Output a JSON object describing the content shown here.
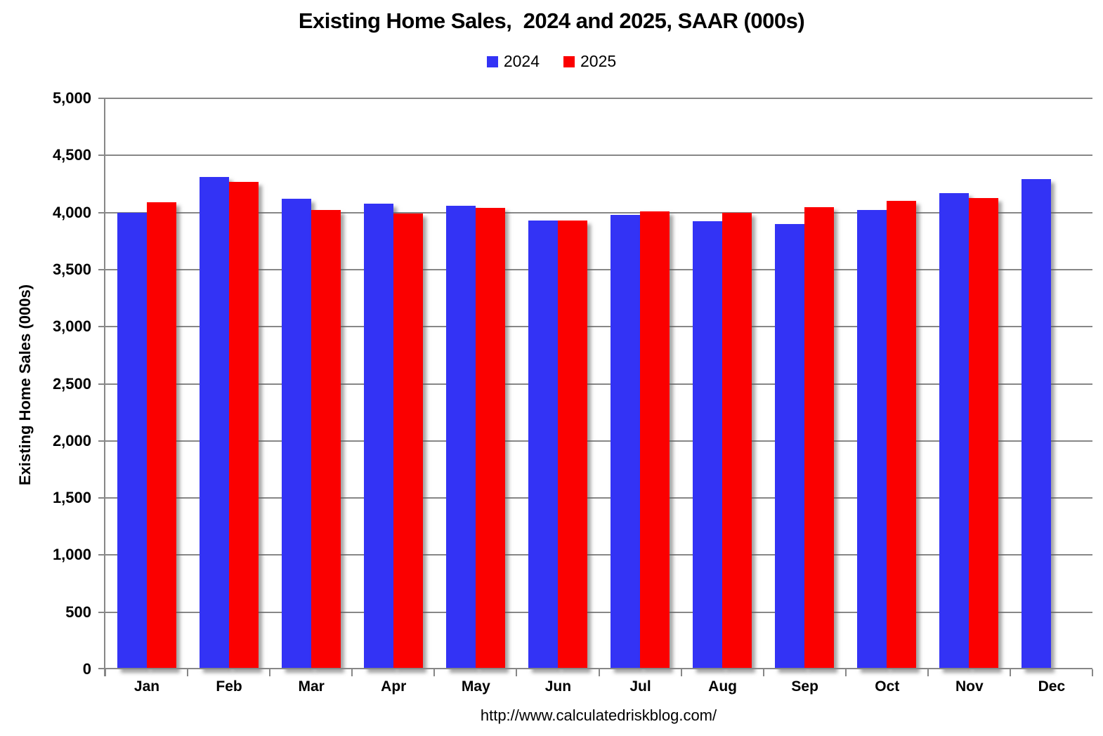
{
  "title": "Existing Home Sales,  2024 and 2025, SAAR (000s)",
  "y_axis_title": "Existing Home Sales (000s)",
  "source_url": "http://www.calculatedriskblog.com/",
  "legend": [
    {
      "label": "2024",
      "color": "#3333F5"
    },
    {
      "label": "2025",
      "color": "#FB0000"
    }
  ],
  "colors": {
    "bar_2024": "#3333F5",
    "bar_2025": "#FB0000",
    "gridline": "#878787",
    "text": "#000000"
  },
  "chart_data": {
    "type": "bar",
    "title": "Existing Home Sales,  2024 and 2025, SAAR (000s)",
    "xlabel": "",
    "ylabel": "Existing Home Sales (000s)",
    "categories": [
      "Jan",
      "Feb",
      "Mar",
      "Apr",
      "May",
      "Jun",
      "Jul",
      "Aug",
      "Sep",
      "Oct",
      "Nov",
      "Dec"
    ],
    "series": [
      {
        "name": "2024",
        "color": "#3333F5",
        "values": [
          4000,
          4310,
          4120,
          4075,
          4060,
          3930,
          3980,
          3925,
          3900,
          4025,
          4170,
          4290
        ]
      },
      {
        "name": "2025",
        "color": "#FB0000",
        "values": [
          4090,
          4270,
          4020,
          3990,
          4040,
          3930,
          4010,
          4000,
          4045,
          4100,
          4125,
          null
        ]
      }
    ],
    "ylim": [
      0,
      5000
    ],
    "ytick_interval": 500,
    "y_tick_labels": [
      "0",
      "500",
      "1,000",
      "1,500",
      "2,000",
      "2,500",
      "3,000",
      "3,500",
      "4,000",
      "4,500",
      "5,000"
    ],
    "grid": true,
    "legend_position": "top"
  }
}
